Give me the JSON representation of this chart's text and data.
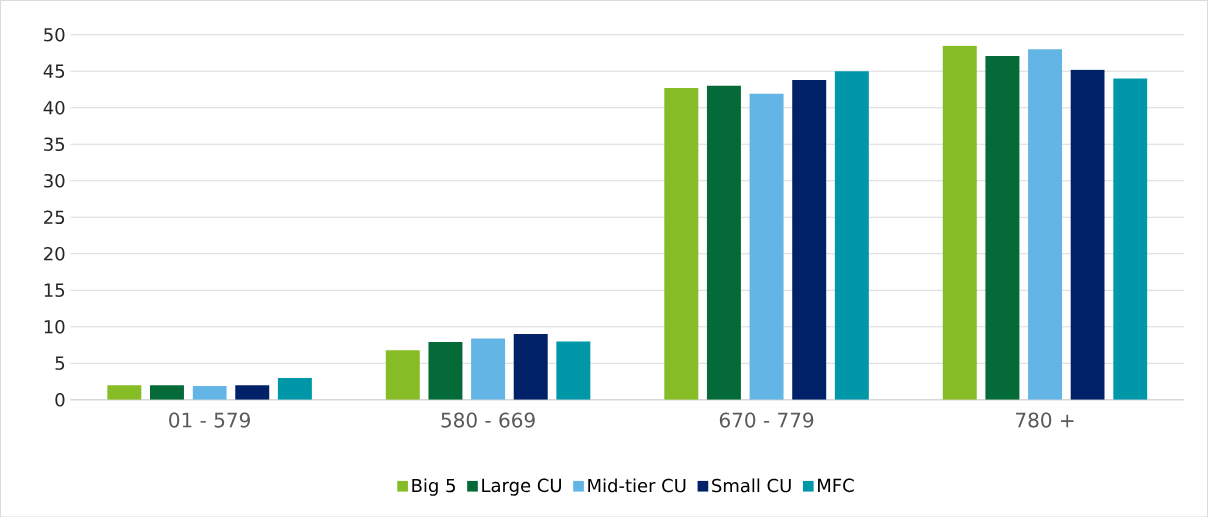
{
  "chart_data": {
    "type": "bar",
    "categories": [
      "01 - 579",
      "580 - 669",
      "670 - 779",
      "780 +"
    ],
    "series": [
      {
        "name": "Big 5",
        "color": "#86bc25",
        "values": [
          2,
          6.8,
          42.7,
          48.5
        ]
      },
      {
        "name": "Large CU",
        "color": "#046a38",
        "values": [
          2,
          7.9,
          43,
          47.1
        ]
      },
      {
        "name": "Mid-tier CU",
        "color": "#62b5e5",
        "values": [
          1.9,
          8.4,
          41.9,
          48
        ]
      },
      {
        "name": "Small CU",
        "color": "#012169",
        "values": [
          2,
          9,
          43.8,
          45.2
        ]
      },
      {
        "name": "MFC",
        "color": "#0097a9",
        "values": [
          3,
          8,
          45,
          44
        ]
      }
    ],
    "ylim": [
      0,
      50
    ],
    "yticks": [
      0,
      5,
      10,
      15,
      20,
      25,
      30,
      35,
      40,
      45,
      50
    ],
    "grid": "y",
    "legend": "bottom"
  }
}
